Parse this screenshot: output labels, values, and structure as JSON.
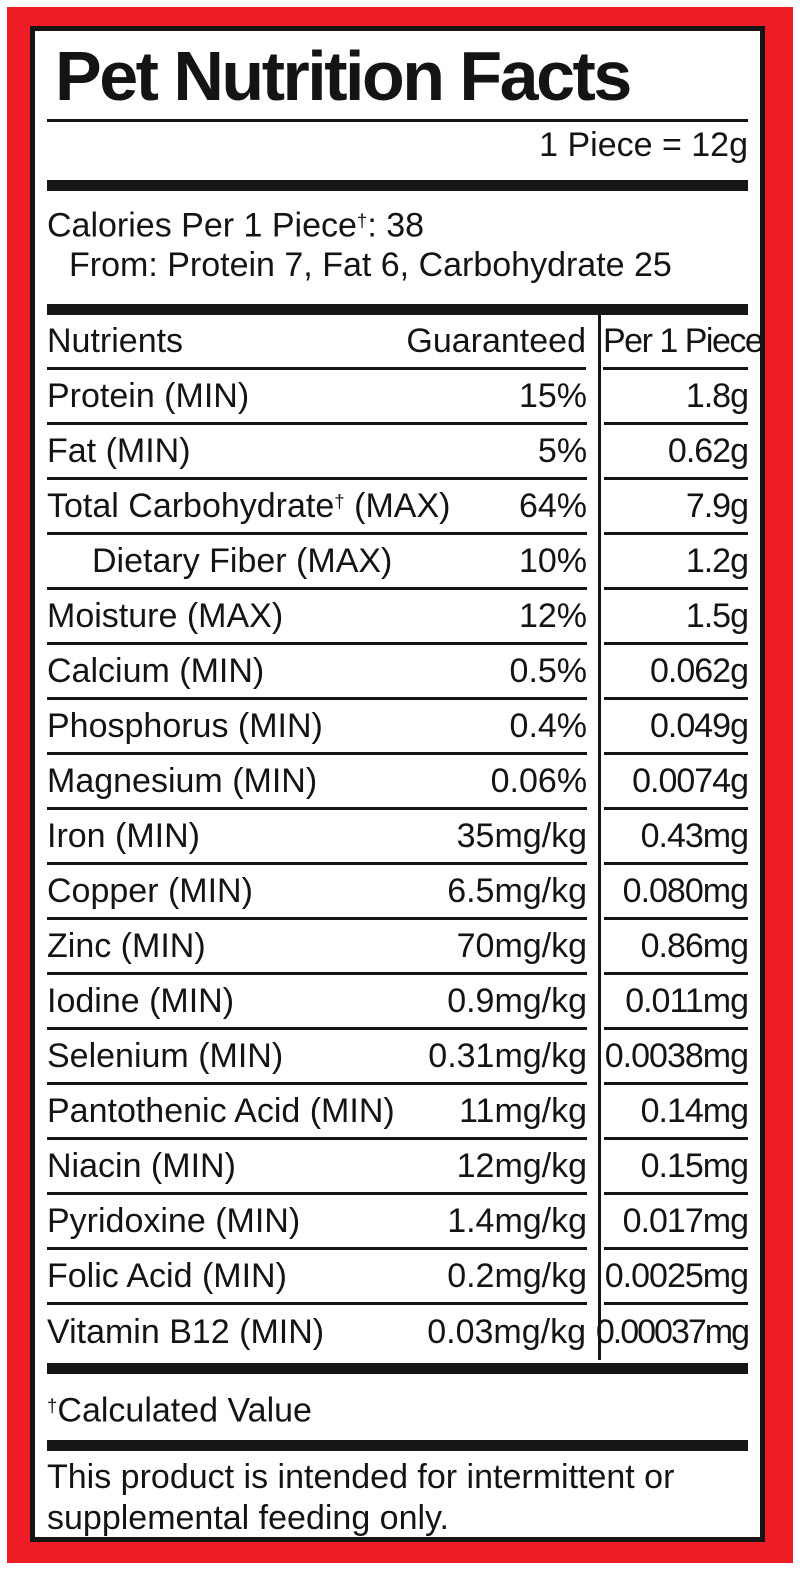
{
  "label": {
    "title": "Pet Nutrition Facts",
    "serving_size": "1 Piece = 12g",
    "calories_line": "Calories Per 1 Piece†: 38",
    "calories_from": "From: Protein 7, Fat 6, Carbohydrate 25",
    "columns": {
      "nutrient": "Nutrients",
      "guaranteed": "Guaranteed",
      "per_piece": "Per 1 Piece"
    },
    "rows": [
      {
        "name": "Protein (MIN)",
        "guaranteed": "15%",
        "per_piece": "1.8g",
        "indent": false
      },
      {
        "name": "Fat (MIN)",
        "guaranteed": "5%",
        "per_piece": "0.62g",
        "indent": false
      },
      {
        "name": "Total Carbohydrate† (MAX)",
        "guaranteed": "64%",
        "per_piece": "7.9g",
        "indent": false
      },
      {
        "name": "Dietary Fiber (MAX)",
        "guaranteed": "10%",
        "per_piece": "1.2g",
        "indent": true
      },
      {
        "name": "Moisture (MAX)",
        "guaranteed": "12%",
        "per_piece": "1.5g",
        "indent": false
      },
      {
        "name": "Calcium (MIN)",
        "guaranteed": "0.5%",
        "per_piece": "0.062g",
        "indent": false
      },
      {
        "name": "Phosphorus (MIN)",
        "guaranteed": "0.4%",
        "per_piece": "0.049g",
        "indent": false
      },
      {
        "name": "Magnesium (MIN)",
        "guaranteed": "0.06%",
        "per_piece": "0.0074g",
        "indent": false
      },
      {
        "name": "Iron (MIN)",
        "guaranteed": "35mg/kg",
        "per_piece": "0.43mg",
        "indent": false
      },
      {
        "name": "Copper (MIN)",
        "guaranteed": "6.5mg/kg",
        "per_piece": "0.080mg",
        "indent": false
      },
      {
        "name": "Zinc (MIN)",
        "guaranteed": "70mg/kg",
        "per_piece": "0.86mg",
        "indent": false
      },
      {
        "name": "Iodine (MIN)",
        "guaranteed": "0.9mg/kg",
        "per_piece": "0.011mg",
        "indent": false
      },
      {
        "name": "Selenium (MIN)",
        "guaranteed": "0.31mg/kg",
        "per_piece": "0.0038mg",
        "indent": false
      },
      {
        "name": "Pantothenic Acid (MIN)",
        "guaranteed": "11mg/kg",
        "per_piece": "0.14mg",
        "indent": false
      },
      {
        "name": "Niacin (MIN)",
        "guaranteed": "12mg/kg",
        "per_piece": "0.15mg",
        "indent": false
      },
      {
        "name": "Pyridoxine (MIN)",
        "guaranteed": "1.4mg/kg",
        "per_piece": "0.017mg",
        "indent": false
      },
      {
        "name": "Folic Acid (MIN)",
        "guaranteed": "0.2mg/kg",
        "per_piece": "0.0025mg",
        "indent": false
      },
      {
        "name": "Vitamin B12 (MIN)",
        "guaranteed": "0.03mg/kg",
        "per_piece": "0.00037mg",
        "indent": false
      }
    ],
    "footnote": "†Calculated Value",
    "disclaimer": "This product is intended for intermittent or supplemental feeding only.",
    "colors": {
      "frame_red": "#ee1c25",
      "ink_black": "#141414"
    }
  }
}
